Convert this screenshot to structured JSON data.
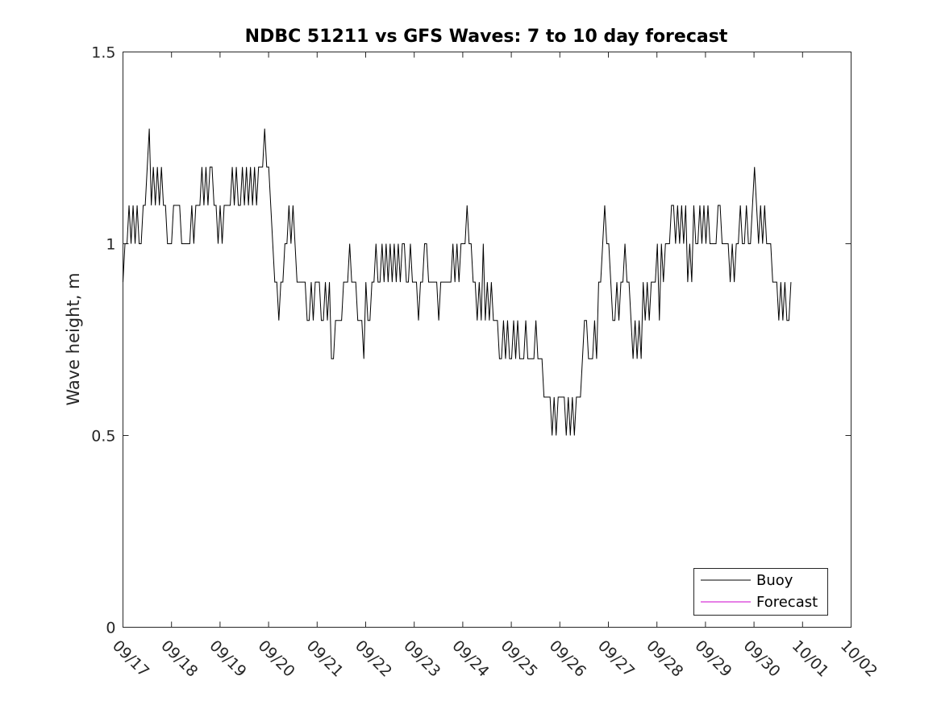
{
  "chart_data": {
    "type": "line",
    "title": "NDBC 51211 vs GFS Waves: 7 to 10 day forecast",
    "xlabel": "",
    "ylabel": "Wave height, m",
    "xlim": [
      0,
      15
    ],
    "ylim": [
      0,
      1.5
    ],
    "grid": false,
    "legend_position": "bottom-right",
    "x_ticks": [
      0,
      1,
      2,
      3,
      4,
      5,
      6,
      7,
      8,
      9,
      10,
      11,
      12,
      13,
      14,
      15
    ],
    "x_tick_labels": [
      "09/17",
      "09/18",
      "09/19",
      "09/20",
      "09/21",
      "09/22",
      "09/23",
      "09/24",
      "09/25",
      "09/26",
      "09/27",
      "09/28",
      "09/29",
      "09/30",
      "10/01",
      "10/02"
    ],
    "y_ticks": [
      0,
      0.5,
      1,
      1.5
    ],
    "y_tick_labels": [
      "0",
      "0.5",
      "1",
      "1.5"
    ],
    "x_unit": "days since 09/17 00:00 (step 0.0417 = 1 hour)",
    "series": [
      {
        "name": "Buoy",
        "color": "#000000",
        "step": 0.0417,
        "x_start": 0,
        "values": [
          0.9,
          1.0,
          1.0,
          1.1,
          1.0,
          1.1,
          1.0,
          1.1,
          1.0,
          1.0,
          1.1,
          1.1,
          1.2,
          1.3,
          1.1,
          1.2,
          1.1,
          1.2,
          1.1,
          1.2,
          1.1,
          1.1,
          1.0,
          1.0,
          1.0,
          1.1,
          1.1,
          1.1,
          1.1,
          1.0,
          1.0,
          1.0,
          1.0,
          1.0,
          1.1,
          1.0,
          1.1,
          1.1,
          1.1,
          1.2,
          1.1,
          1.2,
          1.1,
          1.2,
          1.2,
          1.1,
          1.1,
          1.0,
          1.1,
          1.0,
          1.1,
          1.1,
          1.1,
          1.1,
          1.2,
          1.1,
          1.2,
          1.1,
          1.1,
          1.2,
          1.1,
          1.2,
          1.1,
          1.2,
          1.1,
          1.2,
          1.1,
          1.2,
          1.2,
          1.2,
          1.3,
          1.2,
          1.2,
          1.1,
          1.0,
          0.9,
          0.9,
          0.8,
          0.9,
          0.9,
          1.0,
          1.0,
          1.1,
          1.0,
          1.1,
          1.0,
          0.9,
          0.9,
          0.9,
          0.9,
          0.9,
          0.8,
          0.8,
          0.9,
          0.8,
          0.9,
          0.9,
          0.9,
          0.8,
          0.8,
          0.9,
          0.8,
          0.9,
          0.7,
          0.7,
          0.8,
          0.8,
          0.8,
          0.8,
          0.9,
          0.9,
          0.9,
          1.0,
          0.9,
          0.9,
          0.9,
          0.8,
          0.8,
          0.8,
          0.7,
          0.9,
          0.8,
          0.8,
          0.9,
          0.9,
          1.0,
          0.9,
          0.9,
          1.0,
          0.9,
          1.0,
          0.9,
          1.0,
          0.9,
          1.0,
          0.9,
          1.0,
          0.9,
          1.0,
          1.0,
          0.9,
          0.9,
          1.0,
          0.9,
          0.9,
          0.9,
          0.8,
          0.9,
          0.9,
          1.0,
          1.0,
          0.9,
          0.9,
          0.9,
          0.9,
          0.9,
          0.8,
          0.9,
          0.9,
          0.9,
          0.9,
          0.9,
          0.9,
          1.0,
          0.9,
          1.0,
          0.9,
          1.0,
          1.0,
          1.0,
          1.1,
          1.0,
          1.0,
          0.9,
          0.9,
          0.8,
          0.9,
          0.8,
          1.0,
          0.8,
          0.9,
          0.8,
          0.9,
          0.8,
          0.8,
          0.8,
          0.7,
          0.7,
          0.8,
          0.7,
          0.8,
          0.7,
          0.7,
          0.8,
          0.7,
          0.8,
          0.7,
          0.7,
          0.7,
          0.8,
          0.7,
          0.7,
          0.7,
          0.7,
          0.8,
          0.7,
          0.7,
          0.7,
          0.6,
          0.6,
          0.6,
          0.6,
          0.5,
          0.6,
          0.5,
          0.6,
          0.6,
          0.6,
          0.6,
          0.5,
          0.6,
          0.5,
          0.6,
          0.5,
          0.6,
          0.6,
          0.6,
          0.7,
          0.8,
          0.8,
          0.7,
          0.7,
          0.7,
          0.8,
          0.7,
          0.9,
          0.9,
          1.0,
          1.1,
          1.0,
          1.0,
          0.9,
          0.8,
          0.8,
          0.9,
          0.8,
          0.9,
          0.9,
          1.0,
          0.9,
          0.9,
          0.8,
          0.7,
          0.8,
          0.7,
          0.8,
          0.7,
          0.9,
          0.8,
          0.9,
          0.8,
          0.9,
          0.9,
          0.9,
          1.0,
          0.8,
          1.0,
          0.9,
          1.0,
          1.0,
          1.0,
          1.1,
          1.1,
          1.0,
          1.1,
          1.0,
          1.1,
          1.0,
          1.1,
          0.9,
          1.0,
          0.9,
          1.1,
          1.0,
          1.0,
          1.1,
          1.0,
          1.1,
          1.0,
          1.1,
          1.0,
          1.0,
          1.0,
          1.0,
          1.1,
          1.1,
          1.0,
          1.0,
          1.0,
          1.0,
          0.9,
          1.0,
          0.9,
          1.0,
          1.0,
          1.1,
          1.0,
          1.0,
          1.1,
          1.0,
          1.0,
          1.1,
          1.2,
          1.1,
          1.0,
          1.1,
          1.0,
          1.1,
          1.0,
          1.0,
          1.0,
          0.9,
          0.9,
          0.9,
          0.8,
          0.9,
          0.8,
          0.9,
          0.8,
          0.8,
          0.9
        ]
      },
      {
        "name": "Forecast",
        "color": "#cc00cc",
        "values": []
      }
    ]
  }
}
